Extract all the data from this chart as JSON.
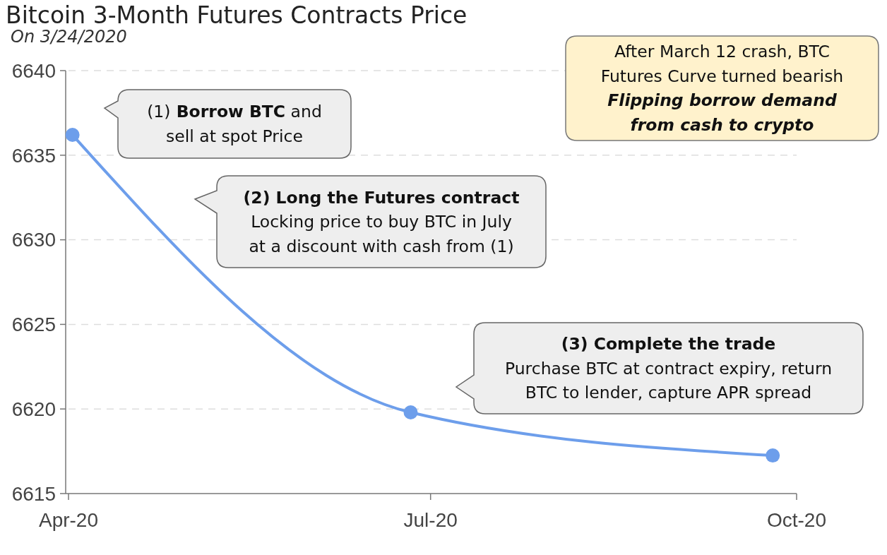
{
  "chart_data": {
    "type": "line",
    "title": "Bitcoin 3-Month Futures Contracts Price",
    "subtitle": "On 3/24/2020",
    "x": [
      "2020-04-02",
      "2020-06-26",
      "2020-09-25"
    ],
    "values": [
      6636.2,
      6619.8,
      6617.25
    ],
    "color": "#6d9eeb",
    "marker": "circle",
    "xlim": [
      "2020-04-01",
      "2020-10-01"
    ],
    "xticks": [
      {
        "value": "2020-04-01",
        "label": "Apr-20"
      },
      {
        "value": "2020-07-01",
        "label": "Jul-20"
      },
      {
        "value": "2020-10-01",
        "label": "Oct-20"
      }
    ],
    "ylim": [
      6615,
      6640
    ],
    "yticks": [
      6615,
      6620,
      6625,
      6630,
      6635,
      6640
    ],
    "grid": "y",
    "annotations": [
      "(1) Borrow BTC and\nsell at spot Price",
      "(2) Long the Futures contract\nLocking price to buy BTC in July\nat a discount with cash from (1)",
      "(3) Complete the trade\nPurchase BTC at contract expiry, return\nBTC to lender, capture APR spread",
      "After March 12 crash, BTC\nFutures Curve turned bearish\nFlipping borrow demand\nfrom cash to crypto"
    ]
  }
}
